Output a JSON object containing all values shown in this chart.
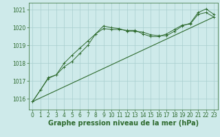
{
  "title": "Graphe pression niveau de la mer (hPa)",
  "bg_color": "#ceeaea",
  "line_color": "#2d6a2d",
  "grid_color": "#a8cece",
  "xlim": [
    -0.5,
    23.5
  ],
  "ylim": [
    1015.4,
    1021.4
  ],
  "yticks": [
    1016,
    1017,
    1018,
    1019,
    1020,
    1021
  ],
  "xticks": [
    0,
    1,
    2,
    3,
    4,
    5,
    6,
    7,
    8,
    9,
    10,
    11,
    12,
    13,
    14,
    15,
    16,
    17,
    18,
    19,
    20,
    21,
    22,
    23
  ],
  "line1_x": [
    0,
    1,
    2,
    3,
    4,
    5,
    6,
    7,
    8,
    9,
    10,
    11,
    12,
    13,
    14,
    15,
    16,
    17,
    18,
    19,
    20,
    21,
    22,
    23
  ],
  "line1_y": [
    1015.85,
    1016.5,
    1017.2,
    1017.35,
    1017.8,
    1018.1,
    1018.55,
    1019.0,
    1019.65,
    1020.1,
    1020.0,
    1019.95,
    1019.8,
    1019.8,
    1019.75,
    1019.6,
    1019.55,
    1019.55,
    1019.8,
    1020.1,
    1020.25,
    1020.85,
    1021.05,
    1020.75
  ],
  "line2_x": [
    0,
    1,
    2,
    3,
    4,
    5,
    6,
    7,
    8,
    9,
    10,
    11,
    12,
    13,
    14,
    15,
    16,
    17,
    18,
    19,
    20,
    21,
    22,
    23
  ],
  "line2_y": [
    1015.85,
    1016.5,
    1017.15,
    1017.35,
    1018.0,
    1018.45,
    1018.85,
    1019.25,
    1019.65,
    1019.95,
    1019.9,
    1019.9,
    1019.85,
    1019.85,
    1019.65,
    1019.5,
    1019.5,
    1019.65,
    1019.9,
    1020.15,
    1020.2,
    1020.75,
    1020.85,
    1020.6
  ],
  "line3_x": [
    0,
    23
  ],
  "line3_y": [
    1015.85,
    1020.6
  ],
  "title_fontsize": 7,
  "tick_fontsize": 5.5
}
